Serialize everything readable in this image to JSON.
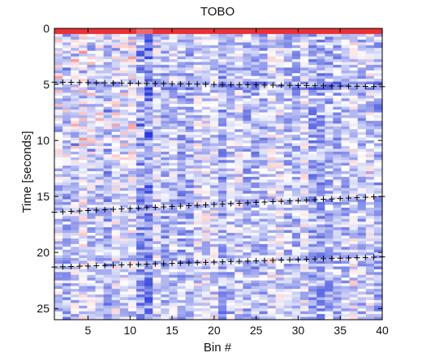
{
  "chart_data": {
    "type": "heatmap",
    "title": "TOBO",
    "xlabel": "Bin #",
    "ylabel": "Time [seconds]",
    "xlim": [
      1,
      40
    ],
    "ylim": [
      26,
      0
    ],
    "y_direction": "down",
    "xticks": [
      5,
      10,
      15,
      20,
      25,
      30,
      35,
      40
    ],
    "yticks": [
      0,
      5,
      10,
      15,
      20,
      25
    ],
    "xtick_labels": [
      "5",
      "10",
      "15",
      "20",
      "25",
      "30",
      "35",
      "40"
    ],
    "ytick_labels": [
      "0",
      "5",
      "10",
      "15",
      "20",
      "25"
    ],
    "n_bins": 40,
    "colormap": {
      "negative": "#2b3bd9",
      "zero": "#ffffff",
      "positive": "#e8262a"
    },
    "grid": false,
    "picked_phases": [
      {
        "marker": "+",
        "x_start": 1,
        "x_end": 40,
        "y_start": 4.8,
        "y_end": 5.2
      },
      {
        "marker": "+",
        "x_start": 1,
        "x_end": 40,
        "y_start": 16.4,
        "y_end": 15.0
      },
      {
        "marker": "+",
        "x_start": 1,
        "x_end": 40,
        "y_start": 21.3,
        "y_end": 20.4
      }
    ]
  }
}
